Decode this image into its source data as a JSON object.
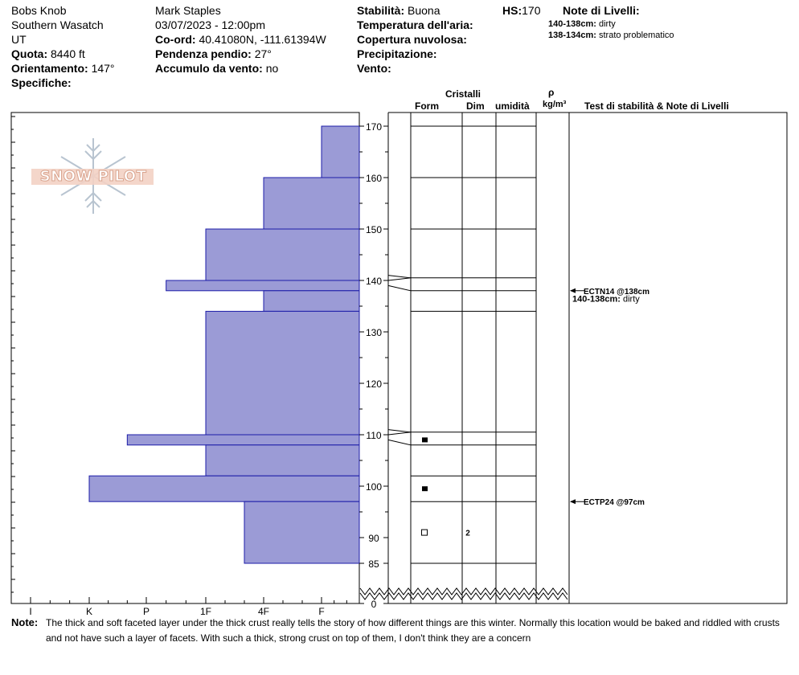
{
  "header": {
    "location": "Bobs Knob",
    "range": "Southern Wasatch",
    "state": "UT",
    "elevation_label": "Quota:",
    "elevation_value": "8440 ft",
    "aspect_label": "Orientamento:",
    "aspect_value": "147°",
    "specifics_label": "Specifiche:",
    "observer": "Mark Staples",
    "datetime": "03/07/2023 - 12:00pm",
    "coord_label": "Co-ord:",
    "coord_value": "40.41080N, -111.61394W",
    "slope_label": "Pendenza pendio:",
    "slope_value": "27°",
    "wind_loading_label": "Accumulo da vento:",
    "wind_loading_value": "no",
    "stability_label": "Stabilità:",
    "stability_value": "Buona",
    "air_temp_label": "Temperatura dell'aria:",
    "cloud_cover_label": "Copertura nuvolosa:",
    "precip_label": "Precipitazione:",
    "wind_label": "Vento:",
    "hs_label": "HS:",
    "hs_value": "170",
    "layer_notes_label": "Note di Livelli:",
    "layer_notes": [
      {
        "range": "140-138cm:",
        "text": "dirty"
      },
      {
        "range": "138-134cm:",
        "text": "strato problematico"
      }
    ]
  },
  "columns": {
    "crystals": "Cristalli",
    "form": "Form",
    "dim": "Dim",
    "moisture": "umidità",
    "rho": "ρ",
    "density_unit": "kg/m³",
    "tests_notes": "Test di stabilità & Note di Livelli"
  },
  "logo_text": "SNOW PILOT",
  "footer": {
    "label": "Note:",
    "line1": "The thick and soft faceted layer under the thick crust really tells the story of how different things are this winter. Normally this location would be baked and riddled with crusts",
    "line2": "and not have such a layer of facets. With such a thick, strong crust on top of them, I don't think they are a concern"
  },
  "colors": {
    "hardness_fill": "#9b9bd6",
    "hardness_stroke": "#1c1ca8"
  },
  "chart_data": {
    "type": "snow_profile",
    "hardness_categories": [
      "I",
      "K",
      "P",
      "1F",
      "4F",
      "F"
    ],
    "depth_ticks": [
      170,
      160,
      150,
      140,
      130,
      120,
      110,
      100,
      90,
      85,
      0
    ],
    "hardness_layers": [
      {
        "top": 170,
        "bottom": 160,
        "hardness": "F"
      },
      {
        "top": 160,
        "bottom": 150,
        "hardness": "4F"
      },
      {
        "top": 150,
        "bottom": 140,
        "hardness": "1F"
      },
      {
        "top": 140,
        "bottom": 138,
        "hardness": "P+"
      },
      {
        "top": 138,
        "bottom": 134,
        "hardness": "4F"
      },
      {
        "top": 134,
        "bottom": 110,
        "hardness": "1F"
      },
      {
        "top": 110,
        "bottom": 108,
        "hardness": "P-"
      },
      {
        "top": 108,
        "bottom": 102,
        "hardness": "1F"
      },
      {
        "top": 102,
        "bottom": 97,
        "hardness": "K"
      },
      {
        "top": 97,
        "bottom": 85,
        "hardness": "4F-"
      }
    ],
    "layer_boundaries": [
      170,
      160,
      150,
      140.5,
      138,
      134,
      110.5,
      108,
      102,
      97,
      85
    ],
    "grain_forms": [
      {
        "depth": 109,
        "symbol": "■",
        "size": ""
      },
      {
        "depth": 99.5,
        "symbol": "■",
        "size": ""
      },
      {
        "depth": 91,
        "symbol": "□",
        "size": "2"
      }
    ],
    "stability_tests": [
      {
        "depth": 138,
        "label": "ECTN14 @138cm"
      },
      {
        "depth": 97,
        "label": "ECTP24 @97cm"
      }
    ],
    "layer_comments": [
      {
        "depth": 136.5,
        "range": "140-138cm:",
        "text": "dirty"
      }
    ]
  }
}
